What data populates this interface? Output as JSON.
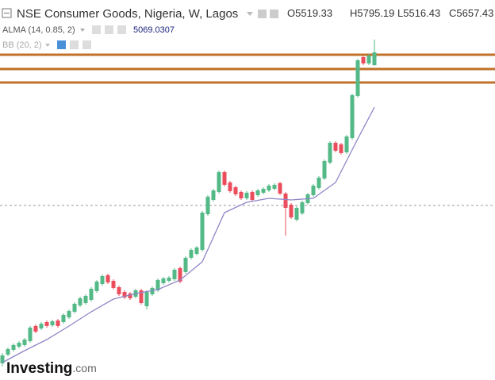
{
  "chart_data": {
    "type": "candlestick",
    "title": "NSE Consumer Goods, Nigeria, W, Lagos",
    "ohlc_labels": [
      "O",
      "H",
      "L",
      "C"
    ],
    "indicators": [
      "ALMA (14, 0.85, 2)",
      "BB (20, 2)"
    ],
    "logo": [
      "Investing",
      ".com"
    ],
    "ylim": [
      2146.5,
      6218
    ],
    "up_color": "#53b987",
    "down_color": "#eb4d5c",
    "candles": {
      "open": [
        2325,
        2419,
        2470,
        2504,
        2521,
        2563,
        2725,
        2699,
        2767,
        2733,
        2784,
        2767,
        2818,
        2878,
        2946,
        2971,
        3005,
        3099,
        3175,
        3269,
        3209,
        3141,
        3090,
        3073,
        3039,
        3107,
        2937,
        3065,
        3107,
        3184,
        3209,
        3226,
        3345,
        3303,
        3456,
        3498,
        3541,
        3923,
        4076,
        4161,
        4374,
        4263,
        4212,
        4161,
        4093,
        4161,
        4127,
        4153,
        4178,
        4195,
        4255,
        4144,
        4025,
        3864,
        3932,
        4042,
        4127,
        4204,
        4306,
        4476,
        4688,
        4671,
        4586,
        4739,
        5190,
        5606,
        5538,
        5519.33
      ],
      "high": [
        2436,
        2495,
        2538,
        2563,
        2597,
        2725,
        2742,
        2767,
        2784,
        2793,
        2801,
        2861,
        2903,
        2980,
        3039,
        3065,
        3141,
        3218,
        3277,
        3286,
        3226,
        3158,
        3107,
        3090,
        3124,
        3124,
        3107,
        3150,
        3235,
        3252,
        3260,
        3345,
        3362,
        3473,
        3558,
        3583,
        3957,
        4127,
        4195,
        4391,
        4391,
        4280,
        4229,
        4178,
        4170,
        4178,
        4195,
        4212,
        4246,
        4255,
        4272,
        4161,
        4042,
        4008,
        4068,
        4153,
        4246,
        4331,
        4510,
        4705,
        4705,
        4688,
        4773,
        5215,
        5589,
        5623,
        5640,
        5795.19
      ],
      "low": [
        2291,
        2402,
        2453,
        2487,
        2504,
        2546,
        2648,
        2682,
        2708,
        2716,
        2708,
        2750,
        2801,
        2861,
        2929,
        2954,
        2988,
        3082,
        3158,
        3175,
        3116,
        3048,
        3014,
        3005,
        3022,
        2954,
        2903,
        3048,
        3090,
        3167,
        3192,
        3209,
        3184,
        3286,
        3439,
        3481,
        3524,
        3906,
        4059,
        4144,
        4221,
        4153,
        4119,
        4076,
        4076,
        4059,
        4110,
        4136,
        4161,
        4178,
        4127,
        3694,
        3872,
        3847,
        3915,
        4025,
        4110,
        4187,
        4289,
        4459,
        4586,
        4561,
        4569,
        4722,
        5173,
        5521,
        5521,
        5516.43
      ],
      "close": [
        2410,
        2478,
        2521,
        2546,
        2580,
        2708,
        2665,
        2750,
        2725,
        2776,
        2725,
        2844,
        2886,
        2963,
        3022,
        3048,
        3124,
        3201,
        3260,
        3192,
        3133,
        3065,
        3031,
        3022,
        3107,
        2971,
        3090,
        3133,
        3218,
        3235,
        3243,
        3328,
        3201,
        3456,
        3541,
        3566,
        3940,
        4110,
        4178,
        4374,
        4238,
        4170,
        4136,
        4093,
        4153,
        4076,
        4178,
        4195,
        4229,
        4238,
        4144,
        3991,
        3889,
        3991,
        4051,
        4136,
        4229,
        4314,
        4493,
        4688,
        4603,
        4578,
        4756,
        5198,
        5572,
        5538,
        5623,
        5657.43
      ]
    },
    "alma": {
      "color": "#8e86c6",
      "x": [
        0,
        4,
        8,
        12,
        16,
        20,
        24,
        28,
        32,
        36,
        40,
        44,
        48,
        52,
        56,
        60,
        64,
        67
      ],
      "values": [
        2333.5,
        2461,
        2580,
        2724.5,
        2877.5,
        3013.5,
        3073,
        3115.5,
        3217.5,
        3413,
        3940,
        4050.5,
        4093,
        4076,
        4093,
        4263,
        4730.5,
        5069.0307
      ]
    },
    "levels": {
      "color": "#c0722a",
      "values": [
        5631.5,
        5478.5,
        5334
      ]
    },
    "crosshair_price": 4016.5
  }
}
